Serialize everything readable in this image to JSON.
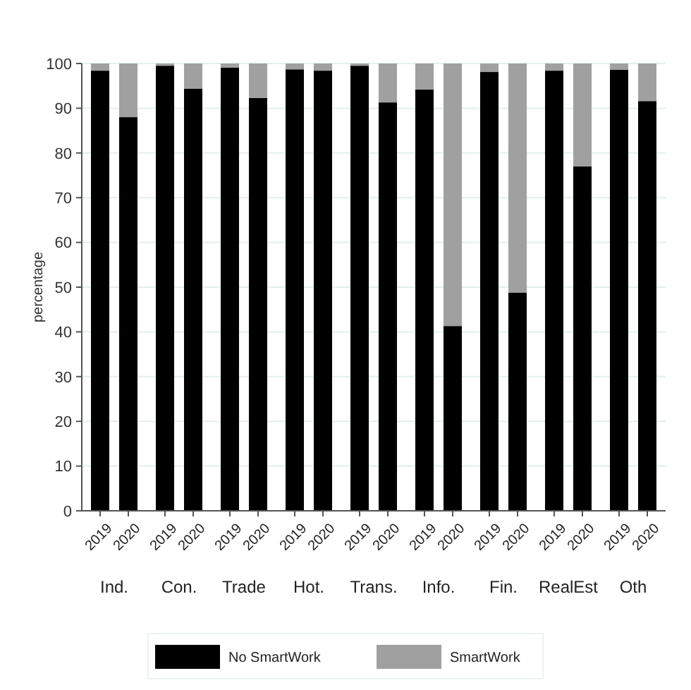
{
  "chart_data": {
    "type": "bar",
    "stacked": true,
    "ylabel": "percentage",
    "categories": [
      "2019",
      "2020",
      "2019",
      "2020",
      "2019",
      "2020",
      "2019",
      "2020",
      "2019",
      "2020",
      "2019",
      "2020",
      "2019",
      "2020",
      "2019",
      "2020",
      "2019",
      "2020"
    ],
    "annotations": [
      "Ind.",
      "Con.",
      "Trade",
      "Hot.",
      "Trans.",
      "Info.",
      "Fin.",
      "RealEst",
      "Oth"
    ],
    "series": [
      {
        "name": "No SmartWork",
        "color": "#000000",
        "values": [
          98.4,
          88,
          99.5,
          94.4,
          99.1,
          92.3,
          98.7,
          98.4,
          99.5,
          91.3,
          94.2,
          41.3,
          98.1,
          48.8,
          98.4,
          77,
          98.6,
          91.6
        ]
      },
      {
        "name": "SmartWork",
        "color": "#a0a0a0",
        "values": [
          1.6,
          12,
          0.5,
          5.6,
          0.9,
          7.7,
          1.3,
          1.6,
          0.5,
          8.7,
          5.8,
          58.7,
          1.9,
          51.2,
          1.6,
          23,
          1.4,
          8.4
        ]
      }
    ],
    "ylim": [
      0,
      100
    ],
    "yticks": [
      0,
      10,
      20,
      30,
      40,
      50,
      60,
      70,
      80,
      90,
      100
    ],
    "grid": "y",
    "legend": "bottom"
  }
}
